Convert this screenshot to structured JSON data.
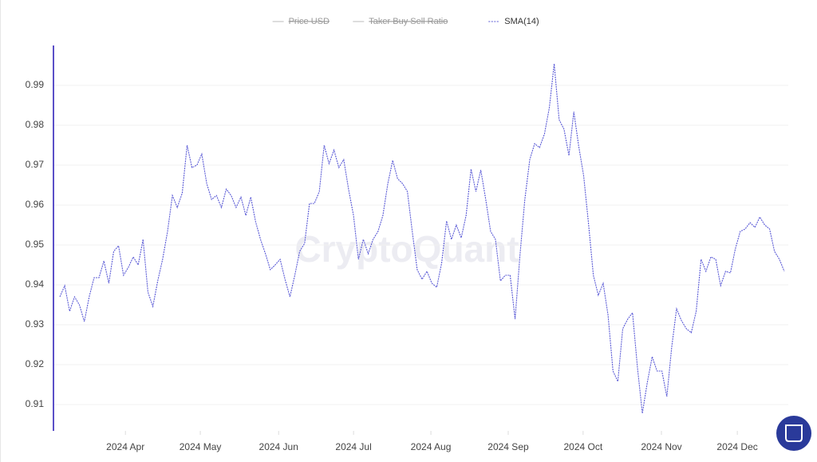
{
  "chart_data": {
    "type": "line",
    "watermark": "CryptoQuant",
    "legend": [
      {
        "name": "Price USD",
        "color": "#bbbbbb",
        "hidden": true
      },
      {
        "name": "Taker Buy Sell Ratio",
        "color": "#bbbbbb",
        "hidden": true
      },
      {
        "name": "SMA(14)",
        "color": "#5b5bd6",
        "hidden": false
      }
    ],
    "series": [
      {
        "name": "SMA(14)",
        "color": "#5b5bd6",
        "values": [
          0.937,
          0.9398,
          0.9334,
          0.937,
          0.935,
          0.9308,
          0.937,
          0.9418,
          0.9418,
          0.946,
          0.9404,
          0.9484,
          0.9498,
          0.9424,
          0.9444,
          0.947,
          0.945,
          0.9514,
          0.9382,
          0.9346,
          0.941,
          0.9464,
          0.9534,
          0.9624,
          0.9594,
          0.963,
          0.975,
          0.9694,
          0.97,
          0.9728,
          0.9654,
          0.9614,
          0.9624,
          0.9594,
          0.964,
          0.9624,
          0.9594,
          0.962,
          0.9574,
          0.962,
          0.9558,
          0.9514,
          0.9478,
          0.9438,
          0.945,
          0.9464,
          0.9414,
          0.937,
          0.9424,
          0.9484,
          0.9504,
          0.9604,
          0.9604,
          0.9634,
          0.975,
          0.9704,
          0.9738,
          0.9694,
          0.9714,
          0.9638,
          0.9574,
          0.9464,
          0.9514,
          0.9478,
          0.9514,
          0.9534,
          0.9574,
          0.9654,
          0.9712,
          0.9666,
          0.9654,
          0.9634,
          0.9534,
          0.9438,
          0.9414,
          0.9434,
          0.9404,
          0.9394,
          0.9454,
          0.956,
          0.9514,
          0.955,
          0.9518,
          0.9574,
          0.969,
          0.9634,
          0.9688,
          0.9614,
          0.9534,
          0.9514,
          0.941,
          0.9424,
          0.9424,
          0.9314,
          0.9474,
          0.9614,
          0.9714,
          0.9754,
          0.9744,
          0.9778,
          0.9844,
          0.9954,
          0.9814,
          0.979,
          0.9724,
          0.9834,
          0.9748,
          0.9674,
          0.9554,
          0.9424,
          0.9374,
          0.9404,
          0.9324,
          0.9184,
          0.9158,
          0.929,
          0.9314,
          0.933,
          0.9194,
          0.9078,
          0.9154,
          0.922,
          0.9184,
          0.9184,
          0.912,
          0.9244,
          0.934,
          0.931,
          0.929,
          0.928,
          0.9334,
          0.9464,
          0.9434,
          0.947,
          0.9464,
          0.9398,
          0.9434,
          0.943,
          0.949,
          0.9534,
          0.954,
          0.9556,
          0.9544,
          0.957,
          0.955,
          0.954,
          0.9484,
          0.9464,
          0.9434
        ]
      }
    ],
    "xlim": [
      0,
      148
    ],
    "xticks": [
      {
        "value": 13.4,
        "label": "2024 Apr"
      },
      {
        "value": 28.7,
        "label": "2024 May"
      },
      {
        "value": 44.7,
        "label": "2024 Jun"
      },
      {
        "value": 60.0,
        "label": "2024 Jul"
      },
      {
        "value": 75.8,
        "label": "2024 Aug"
      },
      {
        "value": 91.6,
        "label": "2024 Sep"
      },
      {
        "value": 106.9,
        "label": "2024 Oct"
      },
      {
        "value": 122.9,
        "label": "2024 Nov"
      },
      {
        "value": 138.4,
        "label": "2024 Dec"
      }
    ],
    "ylim": [
      0.9034,
      1.0
    ],
    "yticks": [
      0.91,
      0.92,
      0.93,
      0.94,
      0.95,
      0.96,
      0.97,
      0.98,
      0.99
    ],
    "grid": true
  }
}
